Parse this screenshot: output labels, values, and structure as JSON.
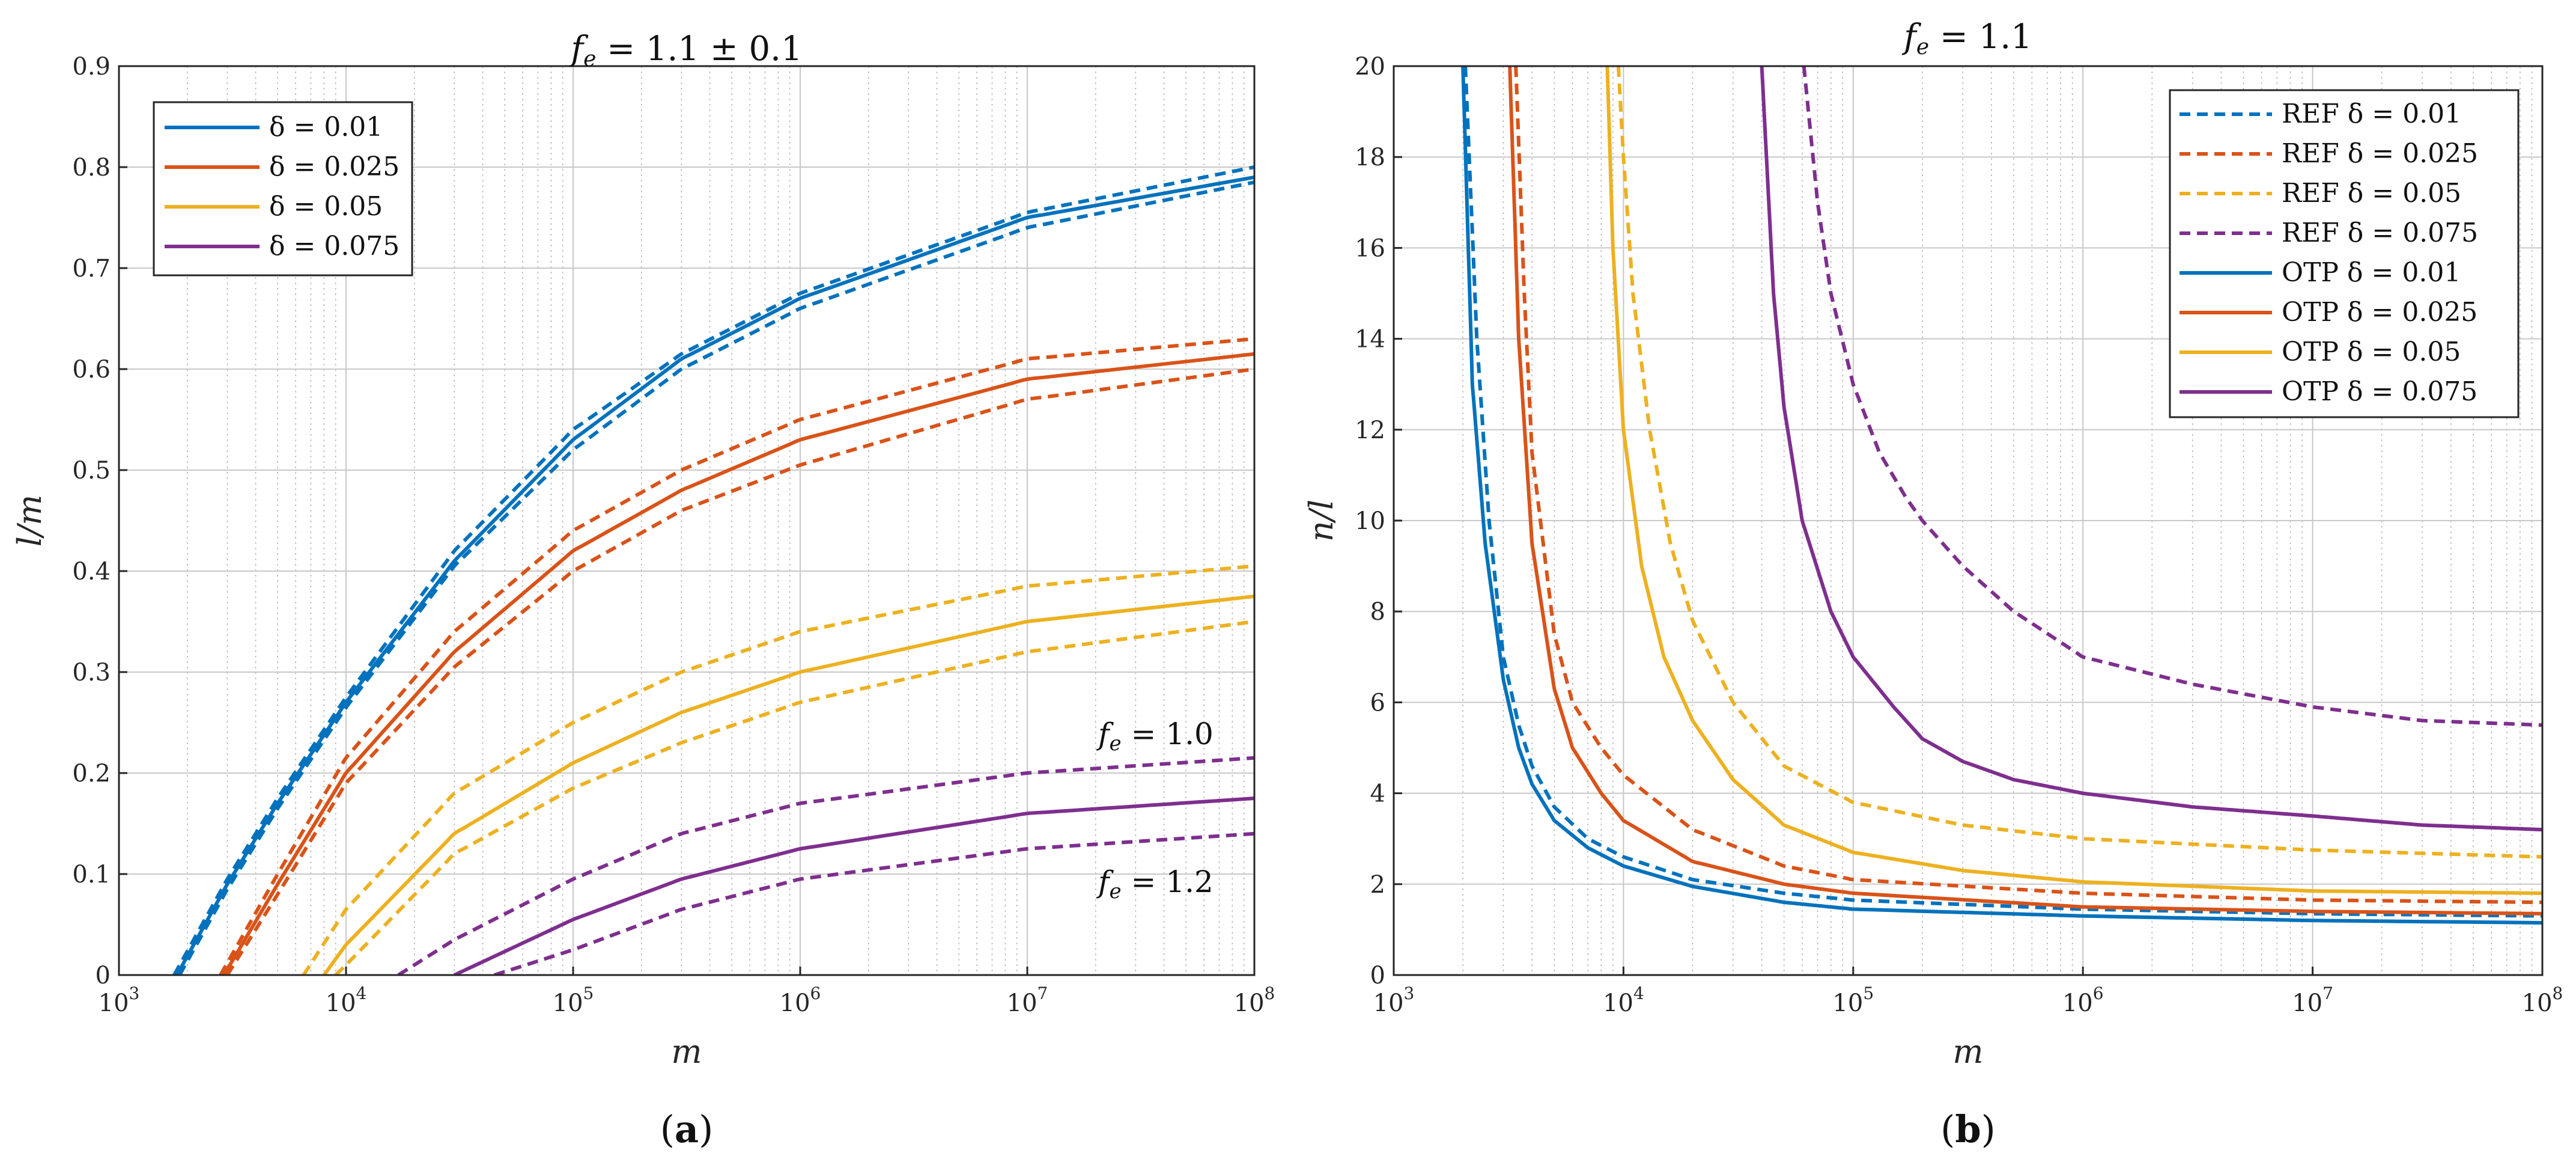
{
  "chart_data": [
    {
      "id": "a",
      "type": "line",
      "title": "f_e = 1.1 ± 0.1",
      "title_parts": {
        "lhs": "f",
        "sub": "e",
        "rhs": " = 1.1 ± 0.1"
      },
      "xlabel": "m",
      "ylabel": "l/m",
      "xscale": "log",
      "xlim": [
        1000,
        100000000
      ],
      "ylim": [
        0,
        0.9
      ],
      "yticks": [
        "0",
        "0.1",
        "0.2",
        "0.3",
        "0.4",
        "0.5",
        "0.6",
        "0.7",
        "0.8",
        "0.9"
      ],
      "xticks": [
        {
          "base": "10",
          "exp": "3"
        },
        {
          "base": "10",
          "exp": "4"
        },
        {
          "base": "10",
          "exp": "5"
        },
        {
          "base": "10",
          "exp": "6"
        },
        {
          "base": "10",
          "exp": "7"
        },
        {
          "base": "10",
          "exp": "8"
        }
      ],
      "grid": true,
      "legend_position": "top-left",
      "legend": [
        {
          "label": "δ = 0.01",
          "color": "#0072BD",
          "style": "solid"
        },
        {
          "label": "δ = 0.025",
          "color": "#D95319",
          "style": "solid"
        },
        {
          "label": "δ = 0.05",
          "color": "#EDB120",
          "style": "solid"
        },
        {
          "label": "δ = 0.075",
          "color": "#7E2F8E",
          "style": "solid"
        }
      ],
      "annotations": [
        {
          "lhs": "f",
          "sub": "e",
          "rhs": " = 1.0",
          "near": "upper dashed δ = 0.075 curve"
        },
        {
          "lhs": "f",
          "sub": "e",
          "rhs": " = 1.2",
          "near": "lower dashed δ = 0.075 curve"
        }
      ],
      "series": [
        {
          "name": "δ=0.01 f_e=1.1",
          "color": "#0072BD",
          "style": "solid",
          "x": [
            1800,
            3000,
            5000,
            10000,
            30000,
            100000,
            300000,
            1000000,
            10000000,
            100000000
          ],
          "y": [
            0,
            0.09,
            0.17,
            0.27,
            0.41,
            0.53,
            0.61,
            0.67,
            0.75,
            0.79
          ]
        },
        {
          "name": "δ=0.01 f_e=1.0",
          "color": "#0072BD",
          "style": "dashed",
          "x": [
            1750,
            3000,
            5000,
            10000,
            30000,
            100000,
            300000,
            1000000,
            10000000,
            100000000
          ],
          "y": [
            0,
            0.095,
            0.175,
            0.275,
            0.42,
            0.54,
            0.615,
            0.675,
            0.755,
            0.8
          ]
        },
        {
          "name": "δ=0.01 f_e=1.2",
          "color": "#0072BD",
          "style": "dashed",
          "x": [
            1850,
            3000,
            5000,
            10000,
            30000,
            100000,
            300000,
            1000000,
            10000000,
            100000000
          ],
          "y": [
            0,
            0.085,
            0.165,
            0.265,
            0.405,
            0.52,
            0.6,
            0.66,
            0.74,
            0.785
          ]
        },
        {
          "name": "δ=0.025 f_e=1.1",
          "color": "#D95319",
          "style": "solid",
          "x": [
            2900,
            5000,
            10000,
            30000,
            100000,
            300000,
            1000000,
            10000000,
            100000000
          ],
          "y": [
            0,
            0.09,
            0.2,
            0.32,
            0.42,
            0.48,
            0.53,
            0.59,
            0.615
          ]
        },
        {
          "name": "δ=0.025 f_e=1.0",
          "color": "#D95319",
          "style": "dashed",
          "x": [
            2800,
            5000,
            10000,
            30000,
            100000,
            300000,
            1000000,
            10000000,
            100000000
          ],
          "y": [
            0,
            0.1,
            0.215,
            0.34,
            0.44,
            0.5,
            0.55,
            0.61,
            0.63
          ]
        },
        {
          "name": "δ=0.025 f_e=1.2",
          "color": "#D95319",
          "style": "dashed",
          "x": [
            3000,
            5000,
            10000,
            30000,
            100000,
            300000,
            1000000,
            10000000,
            100000000
          ],
          "y": [
            0,
            0.08,
            0.19,
            0.305,
            0.4,
            0.46,
            0.505,
            0.57,
            0.6
          ]
        },
        {
          "name": "δ=0.05 f_e=1.1",
          "color": "#EDB120",
          "style": "solid",
          "x": [
            8000,
            10000,
            30000,
            100000,
            300000,
            1000000,
            10000000,
            100000000
          ],
          "y": [
            0,
            0.03,
            0.14,
            0.21,
            0.26,
            0.3,
            0.35,
            0.375
          ]
        },
        {
          "name": "δ=0.05 f_e=1.0",
          "color": "#EDB120",
          "style": "dashed",
          "x": [
            6500,
            10000,
            30000,
            100000,
            300000,
            1000000,
            10000000,
            100000000
          ],
          "y": [
            0,
            0.065,
            0.18,
            0.25,
            0.3,
            0.34,
            0.385,
            0.405
          ]
        },
        {
          "name": "δ=0.05 f_e=1.2",
          "color": "#EDB120",
          "style": "dashed",
          "x": [
            9000,
            10000,
            30000,
            100000,
            300000,
            1000000,
            10000000,
            100000000
          ],
          "y": [
            0,
            0.01,
            0.12,
            0.185,
            0.23,
            0.27,
            0.32,
            0.35
          ]
        },
        {
          "name": "δ=0.075 f_e=1.1",
          "color": "#7E2F8E",
          "style": "solid",
          "x": [
            30000,
            100000,
            300000,
            1000000,
            10000000,
            100000000
          ],
          "y": [
            0,
            0.055,
            0.095,
            0.125,
            0.16,
            0.175
          ]
        },
        {
          "name": "δ=0.075 f_e=1.0",
          "color": "#7E2F8E",
          "style": "dashed",
          "x": [
            17000,
            30000,
            100000,
            300000,
            1000000,
            10000000,
            100000000
          ],
          "y": [
            0,
            0.035,
            0.095,
            0.14,
            0.17,
            0.2,
            0.215
          ]
        },
        {
          "name": "δ=0.075 f_e=1.2",
          "color": "#7E2F8E",
          "style": "dashed",
          "x": [
            45000,
            100000,
            300000,
            1000000,
            10000000,
            100000000
          ],
          "y": [
            0,
            0.025,
            0.065,
            0.095,
            0.125,
            0.14
          ]
        }
      ]
    },
    {
      "id": "b",
      "type": "line",
      "title": "f_e = 1.1",
      "title_parts": {
        "lhs": "f",
        "sub": "e",
        "rhs": " = 1.1"
      },
      "xlabel": "m",
      "ylabel": "n/l",
      "xscale": "log",
      "xlim": [
        1000,
        100000000
      ],
      "ylim": [
        0,
        20
      ],
      "yticks": [
        "0",
        "2",
        "4",
        "6",
        "8",
        "10",
        "12",
        "14",
        "16",
        "18",
        "20"
      ],
      "xticks": [
        {
          "base": "10",
          "exp": "3"
        },
        {
          "base": "10",
          "exp": "4"
        },
        {
          "base": "10",
          "exp": "5"
        },
        {
          "base": "10",
          "exp": "6"
        },
        {
          "base": "10",
          "exp": "7"
        },
        {
          "base": "10",
          "exp": "8"
        }
      ],
      "grid": true,
      "legend_position": "top-right",
      "legend": [
        {
          "label": "REF δ = 0.01",
          "color": "#0072BD",
          "style": "dashed"
        },
        {
          "label": "REF δ = 0.025",
          "color": "#D95319",
          "style": "dashed"
        },
        {
          "label": "REF δ = 0.05",
          "color": "#EDB120",
          "style": "dashed"
        },
        {
          "label": "REF δ = 0.075",
          "color": "#7E2F8E",
          "style": "dashed"
        },
        {
          "label": "OTP δ = 0.01",
          "color": "#0072BD",
          "style": "solid"
        },
        {
          "label": "OTP δ = 0.025",
          "color": "#D95319",
          "style": "solid"
        },
        {
          "label": "OTP δ = 0.05",
          "color": "#EDB120",
          "style": "solid"
        },
        {
          "label": "OTP δ = 0.075",
          "color": "#7E2F8E",
          "style": "solid"
        }
      ],
      "series": [
        {
          "name": "REF δ = 0.01",
          "color": "#0072BD",
          "style": "dashed",
          "x": [
            2050,
            2300,
            2600,
            3000,
            3500,
            4000,
            5000,
            7000,
            10000,
            20000,
            50000,
            100000,
            1000000,
            10000000,
            100000000
          ],
          "y": [
            20,
            14,
            10,
            7,
            5.5,
            4.6,
            3.7,
            3.0,
            2.6,
            2.1,
            1.8,
            1.65,
            1.45,
            1.35,
            1.3
          ]
        },
        {
          "name": "REF δ = 0.025",
          "color": "#D95319",
          "style": "dashed",
          "x": [
            3400,
            3700,
            4000,
            5000,
            6000,
            8000,
            10000,
            20000,
            50000,
            100000,
            1000000,
            10000000,
            100000000
          ],
          "y": [
            20,
            15,
            11.5,
            7.5,
            6.0,
            5.0,
            4.4,
            3.2,
            2.4,
            2.1,
            1.8,
            1.65,
            1.6
          ]
        },
        {
          "name": "REF δ = 0.05",
          "color": "#EDB120",
          "style": "dashed",
          "x": [
            9500,
            10000,
            11000,
            13000,
            16000,
            20000,
            30000,
            50000,
            100000,
            300000,
            1000000,
            10000000,
            100000000
          ],
          "y": [
            20,
            18,
            15,
            12,
            9.5,
            7.8,
            6.0,
            4.6,
            3.8,
            3.3,
            3.0,
            2.75,
            2.6
          ]
        },
        {
          "name": "REF δ = 0.075",
          "color": "#7E2F8E",
          "style": "dashed",
          "x": [
            61000,
            70000,
            80000,
            100000,
            130000,
            170000,
            200000,
            300000,
            500000,
            1000000,
            3000000,
            10000000,
            30000000,
            100000000
          ],
          "y": [
            20,
            17,
            15,
            13,
            11.5,
            10.5,
            10,
            9.0,
            8.0,
            7.0,
            6.4,
            5.9,
            5.6,
            5.5
          ]
        },
        {
          "name": "OTP δ = 0.01",
          "color": "#0072BD",
          "style": "solid",
          "x": [
            2000,
            2200,
            2500,
            3000,
            3500,
            4000,
            5000,
            7000,
            10000,
            20000,
            50000,
            100000,
            1000000,
            10000000,
            100000000
          ],
          "y": [
            20,
            13,
            9.5,
            6.5,
            5.0,
            4.2,
            3.4,
            2.8,
            2.4,
            1.95,
            1.6,
            1.45,
            1.3,
            1.2,
            1.15
          ]
        },
        {
          "name": "OTP δ = 0.025",
          "color": "#D95319",
          "style": "solid",
          "x": [
            3200,
            3500,
            4000,
            5000,
            6000,
            8000,
            10000,
            20000,
            50000,
            100000,
            1000000,
            10000000,
            100000000
          ],
          "y": [
            20,
            14,
            9.5,
            6.3,
            5.0,
            4.0,
            3.4,
            2.5,
            2.0,
            1.8,
            1.5,
            1.4,
            1.35
          ]
        },
        {
          "name": "OTP δ = 0.05",
          "color": "#EDB120",
          "style": "solid",
          "x": [
            8500,
            9000,
            10000,
            12000,
            15000,
            20000,
            30000,
            50000,
            100000,
            300000,
            1000000,
            10000000,
            100000000
          ],
          "y": [
            20,
            16,
            12,
            9.0,
            7.0,
            5.6,
            4.3,
            3.3,
            2.7,
            2.3,
            2.05,
            1.85,
            1.8
          ]
        },
        {
          "name": "OTP δ = 0.075",
          "color": "#7E2F8E",
          "style": "solid",
          "x": [
            40000,
            45000,
            50000,
            60000,
            80000,
            100000,
            150000,
            200000,
            300000,
            500000,
            1000000,
            3000000,
            10000000,
            30000000,
            100000000
          ],
          "y": [
            20,
            15,
            12.5,
            10,
            8.0,
            7.0,
            5.9,
            5.2,
            4.7,
            4.3,
            4.0,
            3.7,
            3.5,
            3.3,
            3.2
          ]
        }
      ]
    }
  ],
  "captions": [
    "a",
    "b"
  ]
}
